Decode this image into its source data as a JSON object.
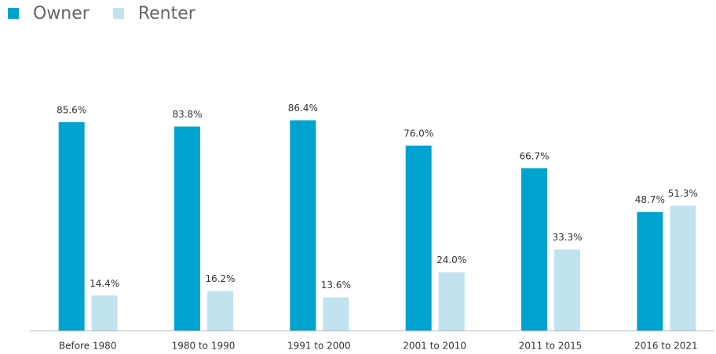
{
  "chart_data": {
    "type": "bar",
    "categories": [
      "Before 1980",
      "1980 to 1990",
      "1991 to 2000",
      "2001 to 2010",
      "2011 to 2015",
      "2016 to 2021"
    ],
    "series": [
      {
        "name": "Owner",
        "color": "#00a3cf",
        "values": [
          85.6,
          83.8,
          86.4,
          76.0,
          66.7,
          48.7
        ],
        "value_labels": [
          "85.6%",
          "83.8%",
          "86.4%",
          "76.0%",
          "66.7%",
          "48.7%"
        ]
      },
      {
        "name": "Renter",
        "color": "#c0e3ef",
        "values": [
          14.4,
          16.2,
          13.6,
          24.0,
          33.3,
          51.3
        ],
        "value_labels": [
          "14.4%",
          "16.2%",
          "13.6%",
          "24.0%",
          "33.3%",
          "51.3%"
        ]
      }
    ],
    "legend": "top-left"
  }
}
